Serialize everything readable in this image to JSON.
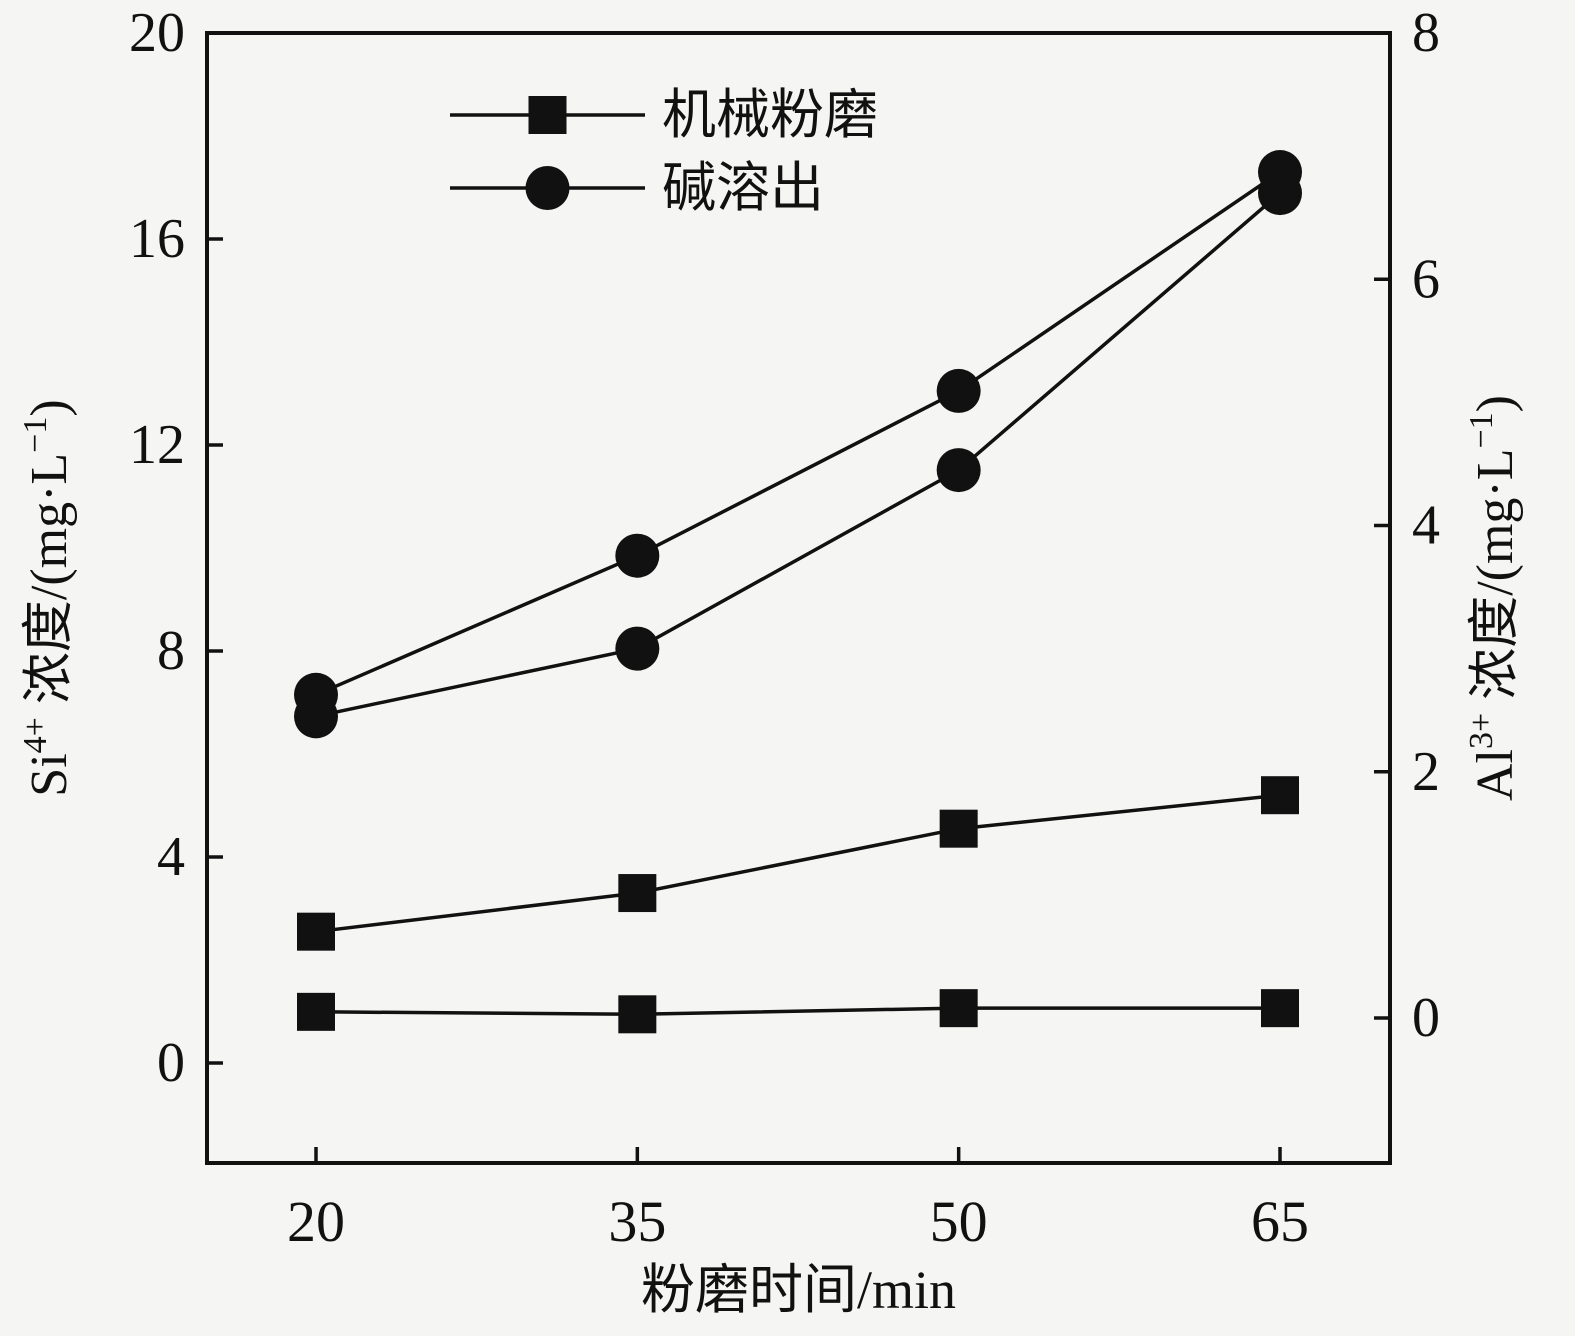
{
  "colors": {
    "background": "#f5f5f3",
    "ink": "#111111"
  },
  "chart_data": {
    "type": "line",
    "x": [
      20,
      35,
      50,
      65
    ],
    "xlabel": "粉磨时间/min",
    "ylabel_left": "Si⁴⁺ 浓度/(mg·L⁻¹)",
    "ylabel_right": "Al³⁺ 浓度/(mg·L⁻¹)",
    "ylabel_left_segments": [
      {
        "t": "Si"
      },
      {
        "t": "4+",
        "sup": true
      },
      {
        "t": " 浓度/(mg·L"
      },
      {
        "t": "−1",
        "sup": true
      },
      {
        "t": ")"
      }
    ],
    "ylabel_right_segments": [
      {
        "t": "Al"
      },
      {
        "t": "3+",
        "sup": true
      },
      {
        "t": " 浓度/(mg·L"
      },
      {
        "t": "−1",
        "sup": true
      },
      {
        "t": ")"
      }
    ],
    "left_axis": {
      "min": 0,
      "max": 20,
      "ticks": [
        0,
        4,
        8,
        12,
        16,
        20
      ]
    },
    "right_axis": {
      "min": 0,
      "max": 8,
      "ticks": [
        0,
        2,
        4,
        6,
        8
      ]
    },
    "grid": false,
    "legend_position": "top-left-inside",
    "legend": [
      {
        "label": "机械粉磨",
        "marker": "square"
      },
      {
        "label": "碱溶出",
        "marker": "circle"
      }
    ],
    "series": [
      {
        "name": "机械粉磨-Si",
        "marker": "square",
        "axis": "left",
        "values": [
          2.55,
          3.3,
          4.55,
          5.2
        ]
      },
      {
        "name": "机械粉磨-Al",
        "marker": "square",
        "axis": "right",
        "values": [
          0.05,
          0.03,
          0.08,
          0.08
        ]
      },
      {
        "name": "碱溶出-Si",
        "marker": "circle",
        "axis": "left",
        "values": [
          7.15,
          9.85,
          13.05,
          17.3
        ]
      },
      {
        "name": "碱溶出-Al",
        "marker": "circle",
        "axis": "right",
        "values": [
          2.45,
          3.0,
          4.45,
          6.7
        ]
      }
    ]
  }
}
